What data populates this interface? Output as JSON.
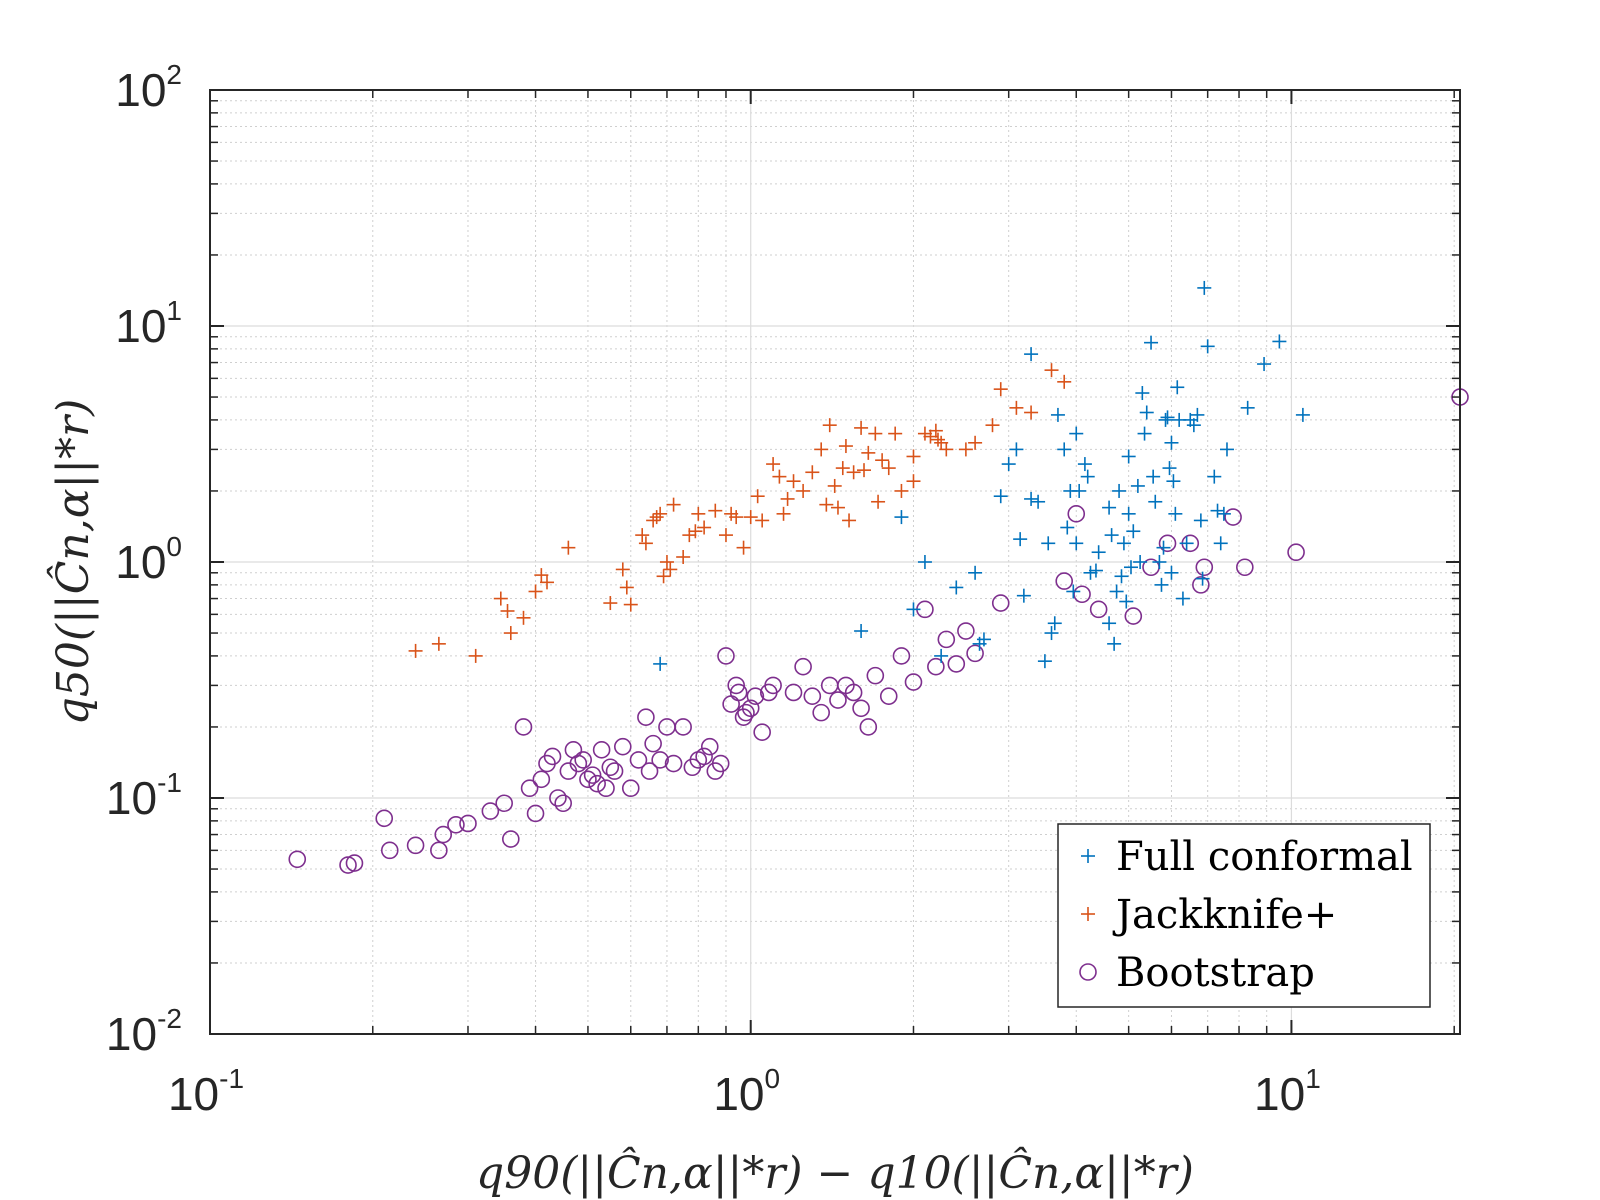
{
  "chart_data": {
    "type": "scatter",
    "x_scale": "log",
    "y_scale": "log",
    "xlim": [
      0.1,
      20.5
    ],
    "ylim": [
      0.01,
      100
    ],
    "x_ticks": [
      {
        "base": "10",
        "exp": "-1",
        "value": 0.1
      },
      {
        "base": "10",
        "exp": "0",
        "value": 1
      },
      {
        "base": "10",
        "exp": "1",
        "value": 10
      }
    ],
    "y_ticks": [
      {
        "base": "10",
        "exp": "-2",
        "value": 0.01
      },
      {
        "base": "10",
        "exp": "-1",
        "value": 0.1
      },
      {
        "base": "10",
        "exp": "0",
        "value": 1
      },
      {
        "base": "10",
        "exp": "1",
        "value": 10
      },
      {
        "base": "10",
        "exp": "2",
        "value": 100
      }
    ],
    "xlabel": "q90(||Ĉn,α||*r) − q10(||Ĉn,α||*r)",
    "ylabel": "q50(||Ĉn,α||*r)",
    "grid": true,
    "legend_position": "bottom-right",
    "series": [
      {
        "name": "Full conformal",
        "marker": "plus",
        "color": "#0072BD",
        "points": [
          [
            0.68,
            0.37
          ],
          [
            1.6,
            0.51
          ],
          [
            1.9,
            1.55
          ],
          [
            2.1,
            1.0
          ],
          [
            2.0,
            0.63
          ],
          [
            2.25,
            0.4
          ],
          [
            2.4,
            0.78
          ],
          [
            2.6,
            0.9
          ],
          [
            2.65,
            0.45
          ],
          [
            2.7,
            0.47
          ],
          [
            2.9,
            1.9
          ],
          [
            3.0,
            2.6
          ],
          [
            3.1,
            3.0
          ],
          [
            3.15,
            1.25
          ],
          [
            3.2,
            0.72
          ],
          [
            3.3,
            1.85
          ],
          [
            3.3,
            7.6
          ],
          [
            3.5,
            0.38
          ],
          [
            3.55,
            1.2
          ],
          [
            3.6,
            0.5
          ],
          [
            3.65,
            0.55
          ],
          [
            3.7,
            4.2
          ],
          [
            3.8,
            3.0
          ],
          [
            3.85,
            1.4
          ],
          [
            3.9,
            2.0
          ],
          [
            3.95,
            0.75
          ],
          [
            4.0,
            1.2
          ],
          [
            4.0,
            3.5
          ],
          [
            4.05,
            2.0
          ],
          [
            4.15,
            2.6
          ],
          [
            4.2,
            2.3
          ],
          [
            4.25,
            0.9
          ],
          [
            4.4,
            1.1
          ],
          [
            4.6,
            1.7
          ],
          [
            4.6,
            0.55
          ],
          [
            4.65,
            1.3
          ],
          [
            4.7,
            0.45
          ],
          [
            4.75,
            0.75
          ],
          [
            4.8,
            2.0
          ],
          [
            4.85,
            0.87
          ],
          [
            4.9,
            1.2
          ],
          [
            4.95,
            0.68
          ],
          [
            5.0,
            1.6
          ],
          [
            5.0,
            2.8
          ],
          [
            5.05,
            0.95
          ],
          [
            5.1,
            1.35
          ],
          [
            5.2,
            2.1
          ],
          [
            5.25,
            1.0
          ],
          [
            5.35,
            3.5
          ],
          [
            5.4,
            4.3
          ],
          [
            5.5,
            8.5
          ],
          [
            5.55,
            2.3
          ],
          [
            5.6,
            1.8
          ],
          [
            5.7,
            1.0
          ],
          [
            5.75,
            0.8
          ],
          [
            5.8,
            1.15
          ],
          [
            5.85,
            4.0
          ],
          [
            5.9,
            4.1
          ],
          [
            5.95,
            2.5
          ],
          [
            6.0,
            0.9
          ],
          [
            6.05,
            2.2
          ],
          [
            6.1,
            1.6
          ],
          [
            6.15,
            5.5
          ],
          [
            6.2,
            4.0
          ],
          [
            6.3,
            0.7
          ],
          [
            6.4,
            1.2
          ],
          [
            6.5,
            4.0
          ],
          [
            6.6,
            3.8
          ],
          [
            6.7,
            4.2
          ],
          [
            6.8,
            1.5
          ],
          [
            6.85,
            0.85
          ],
          [
            6.9,
            14.5
          ],
          [
            7.0,
            8.2
          ],
          [
            7.2,
            2.3
          ],
          [
            7.3,
            1.65
          ],
          [
            7.4,
            1.2
          ],
          [
            7.5,
            1.6
          ],
          [
            7.6,
            3.0
          ],
          [
            8.3,
            4.5
          ],
          [
            8.9,
            6.9
          ],
          [
            9.5,
            8.6
          ],
          [
            10.5,
            4.2
          ],
          [
            5.3,
            5.2
          ],
          [
            4.35,
            0.92
          ],
          [
            3.4,
            1.8
          ],
          [
            6.0,
            3.2
          ]
        ]
      },
      {
        "name": "Jackknife+",
        "marker": "plus",
        "color": "#D95319",
        "points": [
          [
            0.24,
            0.42
          ],
          [
            0.265,
            0.45
          ],
          [
            0.31,
            0.4
          ],
          [
            0.345,
            0.7
          ],
          [
            0.355,
            0.62
          ],
          [
            0.36,
            0.5
          ],
          [
            0.38,
            0.58
          ],
          [
            0.4,
            0.75
          ],
          [
            0.41,
            0.88
          ],
          [
            0.42,
            0.82
          ],
          [
            0.46,
            1.15
          ],
          [
            0.55,
            0.67
          ],
          [
            0.58,
            0.93
          ],
          [
            0.59,
            0.78
          ],
          [
            0.6,
            0.66
          ],
          [
            0.63,
            1.3
          ],
          [
            0.64,
            1.2
          ],
          [
            0.66,
            1.5
          ],
          [
            0.67,
            1.55
          ],
          [
            0.68,
            1.6
          ],
          [
            0.69,
            0.87
          ],
          [
            0.7,
            1.0
          ],
          [
            0.71,
            0.93
          ],
          [
            0.72,
            1.75
          ],
          [
            0.75,
            1.05
          ],
          [
            0.77,
            1.3
          ],
          [
            0.79,
            1.35
          ],
          [
            0.8,
            1.6
          ],
          [
            0.82,
            1.4
          ],
          [
            0.86,
            1.65
          ],
          [
            0.9,
            1.3
          ],
          [
            0.92,
            1.6
          ],
          [
            0.94,
            1.55
          ],
          [
            0.97,
            1.15
          ],
          [
            1.0,
            1.55
          ],
          [
            1.03,
            1.9
          ],
          [
            1.05,
            1.5
          ],
          [
            1.1,
            2.6
          ],
          [
            1.13,
            2.3
          ],
          [
            1.15,
            1.6
          ],
          [
            1.17,
            1.85
          ],
          [
            1.2,
            2.2
          ],
          [
            1.25,
            2.0
          ],
          [
            1.3,
            2.4
          ],
          [
            1.35,
            3.0
          ],
          [
            1.38,
            1.75
          ],
          [
            1.4,
            3.8
          ],
          [
            1.43,
            2.1
          ],
          [
            1.45,
            1.7
          ],
          [
            1.5,
            3.1
          ],
          [
            1.52,
            1.5
          ],
          [
            1.55,
            2.4
          ],
          [
            1.6,
            3.7
          ],
          [
            1.65,
            2.9
          ],
          [
            1.7,
            3.5
          ],
          [
            1.72,
            1.8
          ],
          [
            1.75,
            2.7
          ],
          [
            1.8,
            2.5
          ],
          [
            1.85,
            3.5
          ],
          [
            1.9,
            2.0
          ],
          [
            2.0,
            2.8
          ],
          [
            2.1,
            3.5
          ],
          [
            2.15,
            3.4
          ],
          [
            2.2,
            3.6
          ],
          [
            2.22,
            3.3
          ],
          [
            2.25,
            3.2
          ],
          [
            2.3,
            3.0
          ],
          [
            2.5,
            3.0
          ],
          [
            2.6,
            3.2
          ],
          [
            2.8,
            3.8
          ],
          [
            2.9,
            5.4
          ],
          [
            3.1,
            4.5
          ],
          [
            3.3,
            4.3
          ],
          [
            3.6,
            6.5
          ],
          [
            3.8,
            5.8
          ],
          [
            2.0,
            2.2
          ],
          [
            1.48,
            2.5
          ],
          [
            1.62,
            2.45
          ]
        ]
      },
      {
        "name": "Bootstrap",
        "marker": "circle",
        "color": "#7E2F8E",
        "points": [
          [
            0.145,
            0.055
          ],
          [
            0.18,
            0.052
          ],
          [
            0.185,
            0.053
          ],
          [
            0.21,
            0.082
          ],
          [
            0.215,
            0.06
          ],
          [
            0.24,
            0.063
          ],
          [
            0.265,
            0.06
          ],
          [
            0.27,
            0.07
          ],
          [
            0.285,
            0.077
          ],
          [
            0.3,
            0.078
          ],
          [
            0.33,
            0.088
          ],
          [
            0.35,
            0.095
          ],
          [
            0.36,
            0.067
          ],
          [
            0.38,
            0.2
          ],
          [
            0.39,
            0.11
          ],
          [
            0.4,
            0.086
          ],
          [
            0.41,
            0.12
          ],
          [
            0.42,
            0.14
          ],
          [
            0.43,
            0.15
          ],
          [
            0.44,
            0.1
          ],
          [
            0.45,
            0.095
          ],
          [
            0.46,
            0.13
          ],
          [
            0.47,
            0.16
          ],
          [
            0.48,
            0.14
          ],
          [
            0.49,
            0.145
          ],
          [
            0.5,
            0.12
          ],
          [
            0.51,
            0.125
          ],
          [
            0.52,
            0.115
          ],
          [
            0.53,
            0.16
          ],
          [
            0.54,
            0.11
          ],
          [
            0.55,
            0.135
          ],
          [
            0.56,
            0.13
          ],
          [
            0.58,
            0.165
          ],
          [
            0.6,
            0.11
          ],
          [
            0.62,
            0.145
          ],
          [
            0.64,
            0.22
          ],
          [
            0.65,
            0.13
          ],
          [
            0.66,
            0.17
          ],
          [
            0.68,
            0.145
          ],
          [
            0.7,
            0.2
          ],
          [
            0.72,
            0.14
          ],
          [
            0.75,
            0.2
          ],
          [
            0.78,
            0.135
          ],
          [
            0.8,
            0.145
          ],
          [
            0.82,
            0.15
          ],
          [
            0.84,
            0.165
          ],
          [
            0.86,
            0.13
          ],
          [
            0.88,
            0.14
          ],
          [
            0.9,
            0.4
          ],
          [
            0.92,
            0.25
          ],
          [
            0.94,
            0.3
          ],
          [
            0.95,
            0.28
          ],
          [
            0.97,
            0.22
          ],
          [
            0.98,
            0.23
          ],
          [
            1.0,
            0.24
          ],
          [
            1.02,
            0.27
          ],
          [
            1.05,
            0.19
          ],
          [
            1.08,
            0.28
          ],
          [
            1.1,
            0.3
          ],
          [
            1.2,
            0.28
          ],
          [
            1.25,
            0.36
          ],
          [
            1.3,
            0.27
          ],
          [
            1.35,
            0.23
          ],
          [
            1.4,
            0.3
          ],
          [
            1.45,
            0.26
          ],
          [
            1.5,
            0.3
          ],
          [
            1.55,
            0.28
          ],
          [
            1.6,
            0.24
          ],
          [
            1.65,
            0.2
          ],
          [
            1.7,
            0.33
          ],
          [
            1.8,
            0.27
          ],
          [
            1.9,
            0.4
          ],
          [
            2.0,
            0.31
          ],
          [
            2.1,
            0.63
          ],
          [
            2.2,
            0.36
          ],
          [
            2.3,
            0.47
          ],
          [
            2.4,
            0.37
          ],
          [
            2.5,
            0.51
          ],
          [
            2.6,
            0.41
          ],
          [
            2.9,
            0.67
          ],
          [
            3.8,
            0.83
          ],
          [
            4.0,
            1.6
          ],
          [
            4.1,
            0.73
          ],
          [
            4.4,
            0.63
          ],
          [
            5.1,
            0.59
          ],
          [
            5.5,
            0.95
          ],
          [
            5.9,
            1.2
          ],
          [
            6.5,
            1.2
          ],
          [
            6.8,
            0.8
          ],
          [
            6.9,
            0.95
          ],
          [
            7.8,
            1.55
          ],
          [
            8.2,
            0.95
          ],
          [
            10.2,
            1.1
          ],
          [
            20.5,
            5.0
          ]
        ]
      }
    ]
  }
}
